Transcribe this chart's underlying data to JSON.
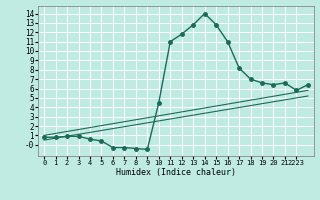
{
  "bg_color": "#c0ebe3",
  "grid_color": "#ffffff",
  "line_color": "#1a6b5a",
  "xlabel": "Humidex (Indice chaleur)",
  "xlim": [
    -0.5,
    23.5
  ],
  "ylim": [
    -1.2,
    14.8
  ],
  "yticks": [
    0,
    1,
    2,
    3,
    4,
    5,
    6,
    7,
    8,
    9,
    10,
    11,
    12,
    13,
    14
  ],
  "ytick_labels": [
    "-0",
    "1",
    "2",
    "3",
    "4",
    "5",
    "6",
    "7",
    "8",
    "9",
    "10",
    "11",
    "12",
    "13",
    "14"
  ],
  "xticks": [
    0,
    1,
    2,
    3,
    4,
    5,
    6,
    7,
    8,
    9,
    10,
    11,
    12,
    13,
    14,
    15,
    16,
    17,
    18,
    19,
    20,
    21,
    22
  ],
  "xtick_labels": [
    "0",
    "1",
    "2",
    "3",
    "4",
    "5",
    "6",
    "7",
    "8",
    "9",
    "10",
    "11",
    "12",
    "13",
    "14",
    "15",
    "16",
    "17",
    "18",
    "19",
    "20",
    "21",
    "2223"
  ],
  "series_main": {
    "x": [
      0,
      1,
      2,
      3,
      4,
      5,
      6,
      7,
      8,
      9,
      10,
      11,
      12,
      13,
      14,
      15,
      16,
      17,
      18,
      19,
      20,
      21,
      22,
      23
    ],
    "y": [
      0.8,
      0.8,
      0.9,
      0.9,
      0.6,
      0.4,
      -0.3,
      -0.3,
      -0.4,
      -0.5,
      4.5,
      11.0,
      11.8,
      12.8,
      14.0,
      12.8,
      11.0,
      8.2,
      7.0,
      6.6,
      6.4,
      6.6,
      5.8,
      6.4
    ],
    "markersize": 2.5,
    "linewidth": 1.0
  },
  "series_line1": {
    "x": [
      0,
      23
    ],
    "y": [
      1.0,
      5.8
    ],
    "linewidth": 0.8
  },
  "series_line2": {
    "x": [
      0,
      23
    ],
    "y": [
      0.5,
      5.2
    ],
    "linewidth": 0.8
  }
}
